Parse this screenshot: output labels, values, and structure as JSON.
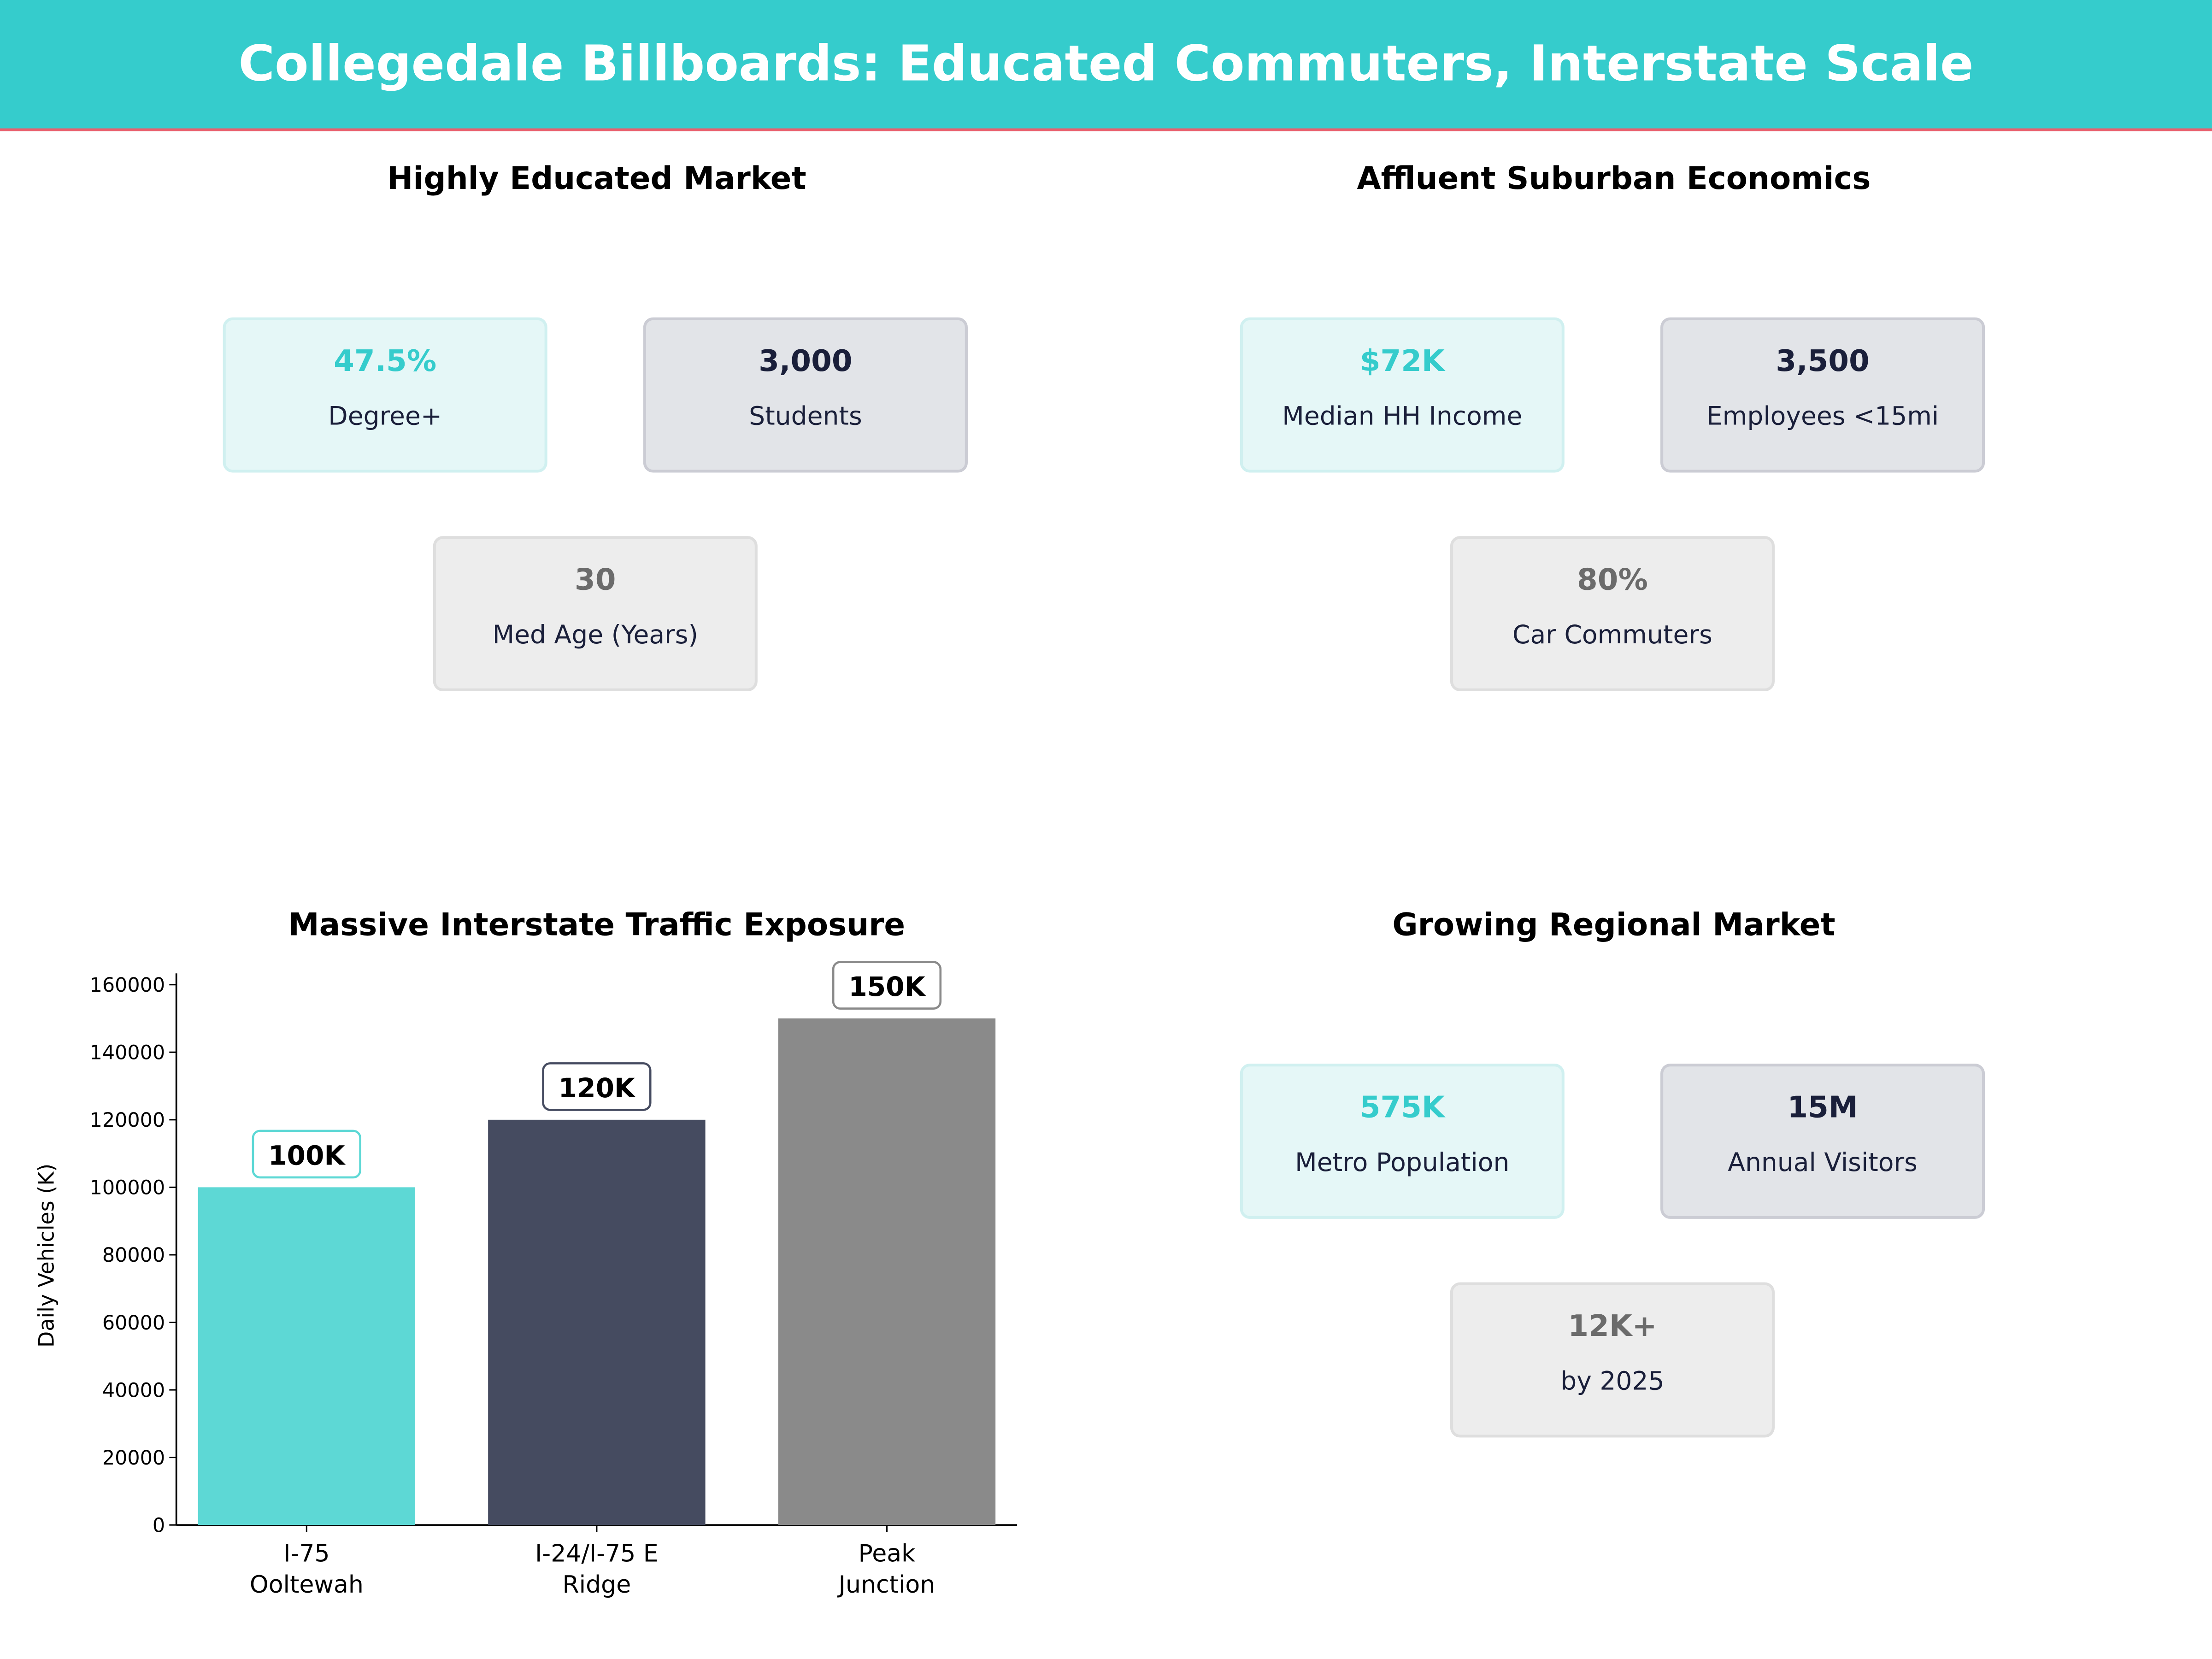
{
  "title": "Collegedale Billboards: Educated Commuters, Interstate Scale",
  "colors": {
    "header": "#35CCCC",
    "accent_line": "#E8606E",
    "teal": "#35CCCC",
    "navy": "#1A1F3A",
    "gray": "#6B6B6B"
  },
  "panels": [
    {
      "title": "Highly Educated Market",
      "cards": [
        {
          "value": "47.5%",
          "label": "Degree+",
          "style": "teal"
        },
        {
          "value": "3,000",
          "label": "Students",
          "style": "navy"
        },
        {
          "value": "30",
          "label": "Med Age (Years)",
          "style": "gray"
        }
      ]
    },
    {
      "title": "Affluent Suburban Economics",
      "cards": [
        {
          "value": "$72K",
          "label": "Median HH Income",
          "style": "teal"
        },
        {
          "value": "3,500",
          "label": "Employees <15mi",
          "style": "navy"
        },
        {
          "value": "80%",
          "label": "Car Commuters",
          "style": "gray"
        }
      ]
    },
    {
      "title": "Growing Regional Market",
      "cards": [
        {
          "value": "575K",
          "label": "Metro Population",
          "style": "teal"
        },
        {
          "value": "15M",
          "label": "Annual Visitors",
          "style": "navy"
        },
        {
          "value": "12K+",
          "label": "by 2025",
          "style": "gray"
        }
      ]
    }
  ],
  "chart_data": {
    "type": "bar",
    "title": "Massive Interstate Traffic Exposure",
    "ylabel": "Daily Vehicles (K)",
    "xlabel": "",
    "categories": [
      [
        "I-75",
        "Ooltewah"
      ],
      [
        "I-24/I-75 E",
        "Ridge"
      ],
      [
        "Peak",
        "Junction"
      ]
    ],
    "values": [
      100000,
      120000,
      150000
    ],
    "data_labels": [
      "100K",
      "120K",
      "150K"
    ],
    "bar_colors": [
      "#5DD8D5",
      "#454B60",
      "#8A8A8A"
    ],
    "label_border_colors": [
      "#5DD8D5",
      "#454B60",
      "#8A8A8A"
    ],
    "ylim": [
      0,
      160000
    ],
    "yticks": [
      0,
      20000,
      40000,
      60000,
      80000,
      100000,
      120000,
      140000,
      160000
    ],
    "grid": false
  }
}
